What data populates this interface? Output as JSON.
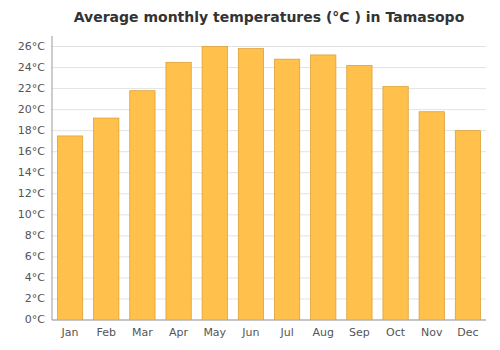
{
  "chart_data": {
    "type": "bar",
    "title": "Average monthly temperatures (°C ) in Tamasopo",
    "categories": [
      "Jan",
      "Feb",
      "Mar",
      "Apr",
      "May",
      "Jun",
      "Jul",
      "Aug",
      "Sep",
      "Oct",
      "Nov",
      "Dec"
    ],
    "values": [
      17.5,
      19.2,
      21.8,
      24.5,
      26.0,
      25.8,
      24.8,
      25.2,
      24.2,
      22.2,
      19.8,
      18.0
    ],
    "color": "#FFC04C",
    "ylim": [
      0,
      27
    ],
    "yticks": [
      {
        "value": 0,
        "label": "0°C"
      },
      {
        "value": 2,
        "label": "2°C"
      },
      {
        "value": 4,
        "label": "4°C"
      },
      {
        "value": 6,
        "label": "6°C"
      },
      {
        "value": 8,
        "label": "8°C"
      },
      {
        "value": 10,
        "label": "10°C"
      },
      {
        "value": 12,
        "label": "12°C"
      },
      {
        "value": 14,
        "label": "14°C"
      },
      {
        "value": 16,
        "label": "16°C"
      },
      {
        "value": 18,
        "label": "18°C"
      },
      {
        "value": 20,
        "label": "20°C"
      },
      {
        "value": 22,
        "label": "22°C"
      },
      {
        "value": 24,
        "label": "24°C"
      },
      {
        "value": 26,
        "label": "26°C"
      }
    ],
    "grid": true
  }
}
